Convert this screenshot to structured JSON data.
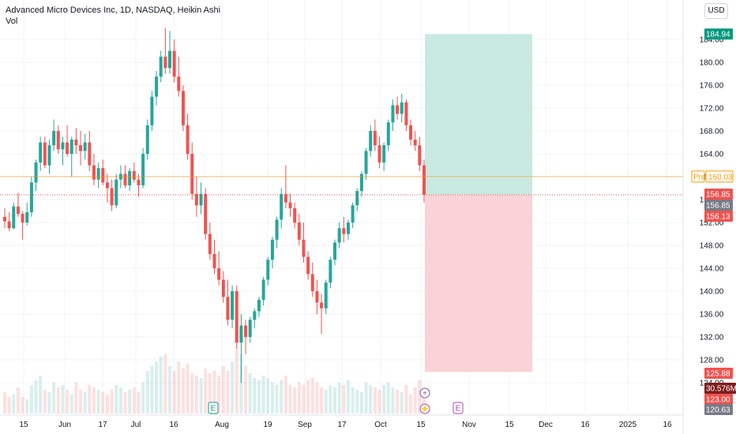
{
  "header": {
    "title": "Advanced Micro Devices Inc, 1D, NASDAQ, Heikin Ashi",
    "indicator": "Vol"
  },
  "currency_button": "USD",
  "colors": {
    "up": "#26a69a",
    "down": "#ef5350",
    "pre_line": "#ff9800",
    "target_zone": "#c8e9e2",
    "stop_zone": "#f9d3d6"
  },
  "price_labels": {
    "target": "184.94",
    "pre_tag": "Pre",
    "pre_value": "160.03",
    "last_close": "156.85",
    "last_close_2": "156.85",
    "entry": "156.13",
    "stop": "125.88",
    "volume": "30.576M",
    "low_1": "123.00",
    "low_2": "120.63"
  },
  "event_markers": {
    "earnings": "E",
    "earnings_future": "E",
    "dividend": "+",
    "split": "⚡"
  },
  "chart_data": {
    "type": "candlestick",
    "style": "Heikin Ashi",
    "y_ticks": [
      "124.00",
      "128.00",
      "132.00",
      "136.00",
      "140.00",
      "144.00",
      "148.00",
      "152.00",
      "156.00",
      "160.00",
      "164.00",
      "168.00",
      "172.00",
      "176.00",
      "180.00",
      "184.00"
    ],
    "x_ticks": [
      "15",
      "Jun",
      "17",
      "Jul",
      "16",
      "Aug",
      "19",
      "Sep",
      "17",
      "Oct",
      "15",
      "Nov",
      "15",
      "Dec",
      "16",
      "2025",
      "16"
    ],
    "ylim": [
      120.63,
      186
    ],
    "candles": [
      {
        "o": 153.0,
        "h": 154.5,
        "l": 151.0,
        "c": 152.2
      },
      {
        "o": 152.2,
        "h": 153.8,
        "l": 150.5,
        "c": 151.0
      },
      {
        "o": 151.0,
        "h": 155.5,
        "l": 150.8,
        "c": 154.8
      },
      {
        "o": 154.8,
        "h": 157.2,
        "l": 153.0,
        "c": 153.5
      },
      {
        "o": 153.5,
        "h": 154.0,
        "l": 149.0,
        "c": 152.0
      },
      {
        "o": 152.0,
        "h": 155.5,
        "l": 151.5,
        "c": 153.8
      },
      {
        "o": 153.8,
        "h": 160.0,
        "l": 153.0,
        "c": 159.0
      },
      {
        "o": 159.0,
        "h": 163.0,
        "l": 157.5,
        "c": 162.5
      },
      {
        "o": 162.5,
        "h": 167.0,
        "l": 161.0,
        "c": 166.0
      },
      {
        "o": 166.0,
        "h": 167.0,
        "l": 161.5,
        "c": 162.0
      },
      {
        "o": 162.0,
        "h": 166.5,
        "l": 160.5,
        "c": 165.5
      },
      {
        "o": 165.5,
        "h": 170.0,
        "l": 164.5,
        "c": 168.0
      },
      {
        "o": 168.0,
        "h": 169.0,
        "l": 164.0,
        "c": 164.8
      },
      {
        "o": 164.8,
        "h": 167.0,
        "l": 162.0,
        "c": 166.0
      },
      {
        "o": 166.0,
        "h": 169.0,
        "l": 163.5,
        "c": 164.0
      },
      {
        "o": 164.0,
        "h": 167.0,
        "l": 160.0,
        "c": 166.5
      },
      {
        "o": 166.5,
        "h": 168.5,
        "l": 164.0,
        "c": 165.5
      },
      {
        "o": 165.5,
        "h": 168.0,
        "l": 162.0,
        "c": 164.5
      },
      {
        "o": 164.5,
        "h": 167.5,
        "l": 163.0,
        "c": 166.0
      },
      {
        "o": 166.0,
        "h": 168.0,
        "l": 161.0,
        "c": 162.0
      },
      {
        "o": 162.0,
        "h": 164.0,
        "l": 158.5,
        "c": 159.5
      },
      {
        "o": 159.5,
        "h": 162.5,
        "l": 158.0,
        "c": 161.5
      },
      {
        "o": 161.5,
        "h": 163.0,
        "l": 158.5,
        "c": 159.0
      },
      {
        "o": 159.0,
        "h": 160.5,
        "l": 155.5,
        "c": 158.0
      },
      {
        "o": 158.0,
        "h": 159.5,
        "l": 154.0,
        "c": 155.0
      },
      {
        "o": 155.0,
        "h": 160.5,
        "l": 154.5,
        "c": 159.5
      },
      {
        "o": 159.5,
        "h": 162.0,
        "l": 158.0,
        "c": 160.5
      },
      {
        "o": 160.5,
        "h": 162.0,
        "l": 158.0,
        "c": 158.5
      },
      {
        "o": 158.5,
        "h": 161.5,
        "l": 157.5,
        "c": 161.0
      },
      {
        "o": 161.0,
        "h": 162.5,
        "l": 159.0,
        "c": 159.5
      },
      {
        "o": 159.5,
        "h": 160.5,
        "l": 156.5,
        "c": 158.5
      },
      {
        "o": 158.5,
        "h": 165.0,
        "l": 158.0,
        "c": 164.0
      },
      {
        "o": 164.0,
        "h": 170.0,
        "l": 163.0,
        "c": 169.0
      },
      {
        "o": 169.0,
        "h": 175.0,
        "l": 168.0,
        "c": 174.0
      },
      {
        "o": 174.0,
        "h": 178.5,
        "l": 172.5,
        "c": 177.5
      },
      {
        "o": 177.5,
        "h": 182.0,
        "l": 176.5,
        "c": 181.0
      },
      {
        "o": 181.0,
        "h": 186.0,
        "l": 178.0,
        "c": 179.0
      },
      {
        "o": 179.0,
        "h": 185.5,
        "l": 178.0,
        "c": 182.0
      },
      {
        "o": 182.0,
        "h": 184.0,
        "l": 176.5,
        "c": 177.5
      },
      {
        "o": 177.5,
        "h": 181.0,
        "l": 174.0,
        "c": 175.0
      },
      {
        "o": 175.0,
        "h": 176.0,
        "l": 168.0,
        "c": 169.0
      },
      {
        "o": 169.0,
        "h": 171.0,
        "l": 163.0,
        "c": 164.0
      },
      {
        "o": 164.0,
        "h": 166.0,
        "l": 156.0,
        "c": 157.0
      },
      {
        "o": 157.0,
        "h": 160.0,
        "l": 153.0,
        "c": 155.0
      },
      {
        "o": 155.0,
        "h": 159.0,
        "l": 153.5,
        "c": 157.0
      },
      {
        "o": 157.0,
        "h": 158.0,
        "l": 149.0,
        "c": 150.0
      },
      {
        "o": 150.0,
        "h": 152.0,
        "l": 145.5,
        "c": 146.5
      },
      {
        "o": 146.5,
        "h": 149.0,
        "l": 143.0,
        "c": 144.0
      },
      {
        "o": 144.0,
        "h": 147.0,
        "l": 141.0,
        "c": 142.0
      },
      {
        "o": 142.0,
        "h": 143.5,
        "l": 138.0,
        "c": 139.0
      },
      {
        "o": 139.0,
        "h": 142.0,
        "l": 134.0,
        "c": 135.0
      },
      {
        "o": 135.0,
        "h": 141.0,
        "l": 133.5,
        "c": 140.0
      },
      {
        "o": 140.0,
        "h": 141.0,
        "l": 130.0,
        "c": 131.0
      },
      {
        "o": 131.0,
        "h": 136.0,
        "l": 124.0,
        "c": 134.0
      },
      {
        "o": 134.0,
        "h": 135.0,
        "l": 129.0,
        "c": 132.0
      },
      {
        "o": 132.0,
        "h": 135.5,
        "l": 131.0,
        "c": 135.0
      },
      {
        "o": 135.0,
        "h": 137.0,
        "l": 133.5,
        "c": 136.5
      },
      {
        "o": 136.5,
        "h": 139.0,
        "l": 135.5,
        "c": 138.5
      },
      {
        "o": 138.5,
        "h": 142.5,
        "l": 137.5,
        "c": 142.0
      },
      {
        "o": 142.0,
        "h": 146.0,
        "l": 141.0,
        "c": 145.5
      },
      {
        "o": 145.5,
        "h": 149.5,
        "l": 144.0,
        "c": 149.0
      },
      {
        "o": 149.0,
        "h": 153.0,
        "l": 147.5,
        "c": 152.5
      },
      {
        "o": 152.5,
        "h": 158.0,
        "l": 151.0,
        "c": 157.0
      },
      {
        "o": 157.0,
        "h": 162.0,
        "l": 154.5,
        "c": 155.5
      },
      {
        "o": 155.5,
        "h": 157.0,
        "l": 153.0,
        "c": 154.5
      },
      {
        "o": 154.5,
        "h": 155.5,
        "l": 151.0,
        "c": 152.0
      },
      {
        "o": 152.0,
        "h": 153.5,
        "l": 148.0,
        "c": 149.0
      },
      {
        "o": 149.0,
        "h": 152.0,
        "l": 145.0,
        "c": 146.0
      },
      {
        "o": 146.0,
        "h": 147.0,
        "l": 142.0,
        "c": 143.0
      },
      {
        "o": 143.0,
        "h": 145.0,
        "l": 139.0,
        "c": 140.0
      },
      {
        "o": 140.0,
        "h": 142.0,
        "l": 136.0,
        "c": 138.0
      },
      {
        "o": 138.0,
        "h": 139.5,
        "l": 132.5,
        "c": 137.0
      },
      {
        "o": 137.0,
        "h": 142.0,
        "l": 136.0,
        "c": 141.5
      },
      {
        "o": 141.5,
        "h": 146.0,
        "l": 140.5,
        "c": 145.5
      },
      {
        "o": 145.5,
        "h": 149.0,
        "l": 144.5,
        "c": 148.5
      },
      {
        "o": 148.5,
        "h": 152.0,
        "l": 147.5,
        "c": 151.0
      },
      {
        "o": 151.0,
        "h": 153.0,
        "l": 148.5,
        "c": 150.0
      },
      {
        "o": 150.0,
        "h": 152.5,
        "l": 149.0,
        "c": 152.0
      },
      {
        "o": 152.0,
        "h": 155.5,
        "l": 151.0,
        "c": 155.0
      },
      {
        "o": 155.0,
        "h": 158.0,
        "l": 154.0,
        "c": 157.5
      },
      {
        "o": 157.5,
        "h": 161.0,
        "l": 156.5,
        "c": 160.5
      },
      {
        "o": 160.5,
        "h": 165.0,
        "l": 159.5,
        "c": 164.5
      },
      {
        "o": 164.5,
        "h": 169.0,
        "l": 163.5,
        "c": 168.0
      },
      {
        "o": 168.0,
        "h": 170.0,
        "l": 164.5,
        "c": 165.5
      },
      {
        "o": 165.5,
        "h": 167.0,
        "l": 161.5,
        "c": 162.5
      },
      {
        "o": 162.5,
        "h": 166.0,
        "l": 161.0,
        "c": 165.5
      },
      {
        "o": 165.5,
        "h": 170.0,
        "l": 164.5,
        "c": 169.5
      },
      {
        "o": 169.5,
        "h": 173.5,
        "l": 168.0,
        "c": 172.5
      },
      {
        "o": 172.5,
        "h": 174.0,
        "l": 170.0,
        "c": 171.0
      },
      {
        "o": 171.0,
        "h": 174.5,
        "l": 169.5,
        "c": 173.0
      },
      {
        "o": 173.0,
        "h": 173.5,
        "l": 168.0,
        "c": 169.0
      },
      {
        "o": 169.0,
        "h": 170.0,
        "l": 165.5,
        "c": 166.5
      },
      {
        "o": 166.5,
        "h": 168.0,
        "l": 164.5,
        "c": 165.5
      },
      {
        "o": 165.5,
        "h": 167.0,
        "l": 161.0,
        "c": 162.0
      },
      {
        "o": 162.0,
        "h": 163.0,
        "l": 155.5,
        "c": 156.85
      }
    ],
    "volume": [
      9,
      7,
      8,
      11,
      7,
      6,
      12,
      14,
      16,
      10,
      9,
      13,
      11,
      12,
      10,
      8,
      13,
      10,
      9,
      12,
      11,
      10,
      9,
      8,
      10,
      12,
      11,
      9,
      10,
      11,
      9,
      13,
      18,
      20,
      22,
      24,
      25,
      20,
      18,
      22,
      19,
      21,
      17,
      16,
      15,
      19,
      17,
      18,
      16,
      20,
      18,
      22,
      28,
      25,
      20,
      17,
      15,
      14,
      16,
      15,
      13,
      12,
      14,
      16,
      12,
      11,
      13,
      12,
      14,
      15,
      13,
      11,
      10,
      12,
      11,
      13,
      12,
      14,
      11,
      10,
      9,
      13,
      12,
      11,
      10,
      12,
      13,
      11,
      10,
      9,
      12,
      8,
      11,
      14,
      10
    ]
  }
}
